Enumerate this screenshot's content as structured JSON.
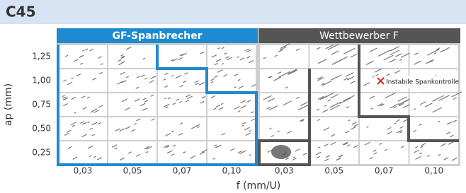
{
  "title": "C45",
  "groups": [
    "GF-Spanbrecher",
    "Wettbewerber F"
  ],
  "y_axis": {
    "label": "ap (mm)",
    "ticks": [
      "1,25",
      "1,00",
      "0,75",
      "0,50",
      "0,25"
    ]
  },
  "x_axis": {
    "label": "f (mm/U)",
    "ticks": [
      "0,03",
      "0,05",
      "0,07",
      "0,10",
      "0,03",
      "0,05",
      "0,07",
      "0,10"
    ]
  },
  "annotation": "Instabile Spankontrolle"
}
